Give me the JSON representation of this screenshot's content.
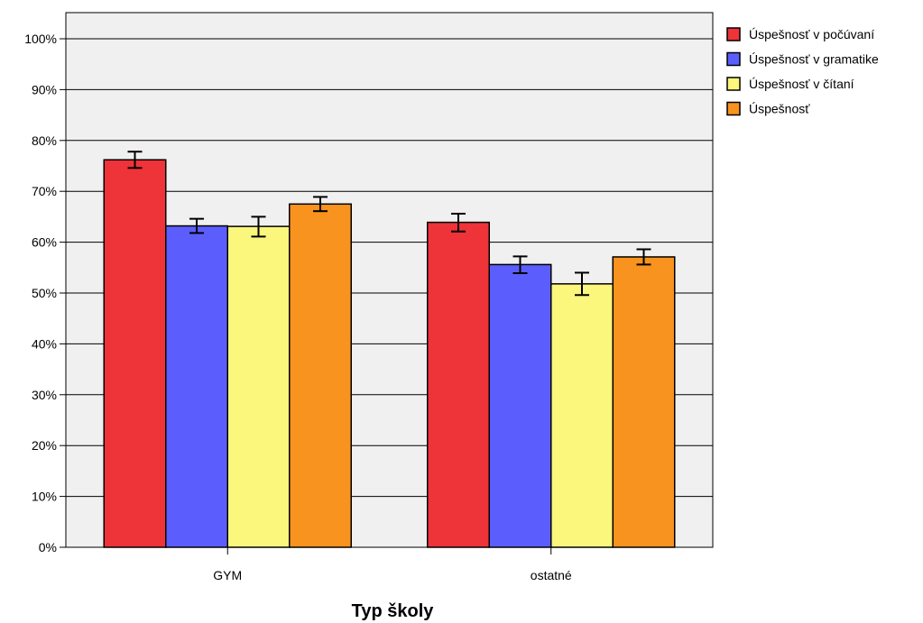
{
  "chart_data": {
    "type": "bar",
    "xlabel": "Typ školy",
    "ylabel": "",
    "ylim": [
      0,
      100
    ],
    "y_unit": "%",
    "y_ticks": [
      "0%",
      "10%",
      "20%",
      "30%",
      "40%",
      "50%",
      "60%",
      "70%",
      "80%",
      "90%",
      "100%"
    ],
    "grid": true,
    "legend_position": "top-right",
    "categories": [
      "GYM",
      "ostatné"
    ],
    "series": [
      {
        "name": "Úspešnosť v počúvaní",
        "color": "#EE3339",
        "values": [
          76.2,
          63.9
        ],
        "error_low": [
          74.6,
          62.1
        ],
        "error_high": [
          77.8,
          65.6
        ]
      },
      {
        "name": "Úspešnosť v gramatike",
        "color": "#5B5EFC",
        "values": [
          63.2,
          55.6
        ],
        "error_low": [
          61.8,
          53.9
        ],
        "error_high": [
          64.6,
          57.2
        ]
      },
      {
        "name": "Úspešnosť v čítaní",
        "color": "#FBF67C",
        "values": [
          63.1,
          51.8
        ],
        "error_low": [
          61.1,
          49.6
        ],
        "error_high": [
          65.0,
          54.0
        ]
      },
      {
        "name": "Úspešnosť",
        "color": "#F7931E",
        "values": [
          67.5,
          57.1
        ],
        "error_low": [
          66.1,
          55.6
        ],
        "error_high": [
          68.9,
          58.6
        ]
      }
    ]
  }
}
